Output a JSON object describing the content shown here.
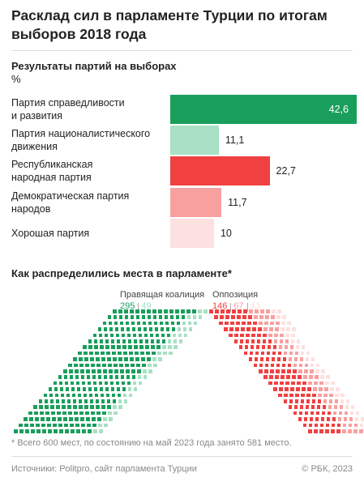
{
  "title": "Расклад сил в парламенте Турции по итогам выборов 2018 года",
  "chart_data": [
    {
      "type": "bar",
      "title": "Результаты партий на выборах",
      "unit": "%",
      "categories": [
        "Партия справедливости\nи развития",
        "Партия националистического\nдвижения",
        "Республиканская\nнародная партия",
        "Демократическая партия\nнародов",
        "Хорошая партия"
      ],
      "values": [
        42.6,
        11.1,
        22.7,
        11.7,
        10
      ],
      "value_labels": [
        "42,6",
        "11,1",
        "22,7",
        "11,7",
        "10"
      ],
      "colors": [
        "#1a9e5c",
        "#a8e0c4",
        "#f04040",
        "#f8a0a0",
        "#fde0e0"
      ]
    },
    {
      "type": "parliament",
      "title": "Как распределились места в парламенте*",
      "groups": [
        {
          "name": "Правящая коалиция",
          "values": [
            295,
            49
          ],
          "colors": [
            "#1a9e5c",
            "#a8e0c4"
          ]
        },
        {
          "name": "Оппозиция",
          "values": [
            146,
            67,
            43
          ],
          "colors": [
            "#f04040",
            "#f8a0a0",
            "#fde0e0"
          ]
        }
      ]
    }
  ],
  "footnote": "* Всего 600 мест, по состоянию на май 2023 года занято 581 место.",
  "source": "Источники: Politpro, сайт парламента Турции",
  "copyright": "© РБК, 2023"
}
